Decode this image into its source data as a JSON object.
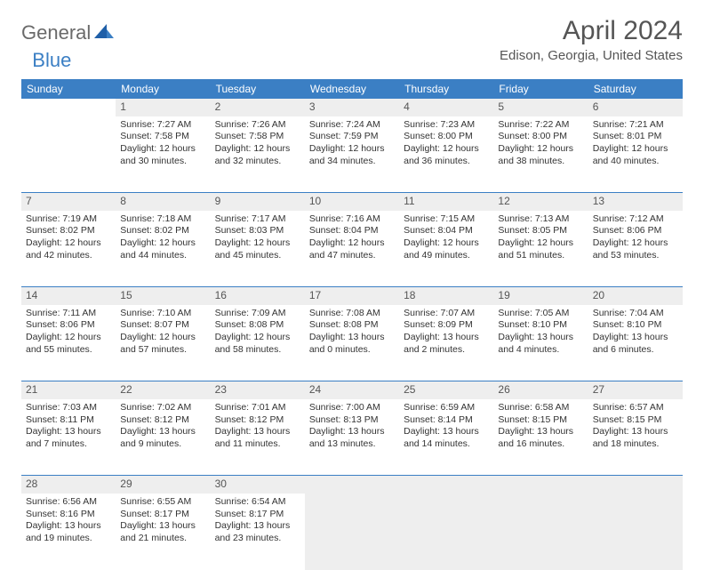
{
  "logo": {
    "general": "General",
    "blue": "Blue",
    "iconColor": "#1f5fa8"
  },
  "title": "April 2024",
  "location": "Edison, Georgia, United States",
  "headerColor": "#3b7fc4",
  "dayHeaderBg": "#eeeeee",
  "weekdays": [
    "Sunday",
    "Monday",
    "Tuesday",
    "Wednesday",
    "Thursday",
    "Friday",
    "Saturday"
  ],
  "weeks": [
    [
      null,
      {
        "n": "1",
        "sr": "7:27 AM",
        "ss": "7:58 PM",
        "dl": "12 hours and 30 minutes."
      },
      {
        "n": "2",
        "sr": "7:26 AM",
        "ss": "7:58 PM",
        "dl": "12 hours and 32 minutes."
      },
      {
        "n": "3",
        "sr": "7:24 AM",
        "ss": "7:59 PM",
        "dl": "12 hours and 34 minutes."
      },
      {
        "n": "4",
        "sr": "7:23 AM",
        "ss": "8:00 PM",
        "dl": "12 hours and 36 minutes."
      },
      {
        "n": "5",
        "sr": "7:22 AM",
        "ss": "8:00 PM",
        "dl": "12 hours and 38 minutes."
      },
      {
        "n": "6",
        "sr": "7:21 AM",
        "ss": "8:01 PM",
        "dl": "12 hours and 40 minutes."
      }
    ],
    [
      {
        "n": "7",
        "sr": "7:19 AM",
        "ss": "8:02 PM",
        "dl": "12 hours and 42 minutes."
      },
      {
        "n": "8",
        "sr": "7:18 AM",
        "ss": "8:02 PM",
        "dl": "12 hours and 44 minutes."
      },
      {
        "n": "9",
        "sr": "7:17 AM",
        "ss": "8:03 PM",
        "dl": "12 hours and 45 minutes."
      },
      {
        "n": "10",
        "sr": "7:16 AM",
        "ss": "8:04 PM",
        "dl": "12 hours and 47 minutes."
      },
      {
        "n": "11",
        "sr": "7:15 AM",
        "ss": "8:04 PM",
        "dl": "12 hours and 49 minutes."
      },
      {
        "n": "12",
        "sr": "7:13 AM",
        "ss": "8:05 PM",
        "dl": "12 hours and 51 minutes."
      },
      {
        "n": "13",
        "sr": "7:12 AM",
        "ss": "8:06 PM",
        "dl": "12 hours and 53 minutes."
      }
    ],
    [
      {
        "n": "14",
        "sr": "7:11 AM",
        "ss": "8:06 PM",
        "dl": "12 hours and 55 minutes."
      },
      {
        "n": "15",
        "sr": "7:10 AM",
        "ss": "8:07 PM",
        "dl": "12 hours and 57 minutes."
      },
      {
        "n": "16",
        "sr": "7:09 AM",
        "ss": "8:08 PM",
        "dl": "12 hours and 58 minutes."
      },
      {
        "n": "17",
        "sr": "7:08 AM",
        "ss": "8:08 PM",
        "dl": "13 hours and 0 minutes."
      },
      {
        "n": "18",
        "sr": "7:07 AM",
        "ss": "8:09 PM",
        "dl": "13 hours and 2 minutes."
      },
      {
        "n": "19",
        "sr": "7:05 AM",
        "ss": "8:10 PM",
        "dl": "13 hours and 4 minutes."
      },
      {
        "n": "20",
        "sr": "7:04 AM",
        "ss": "8:10 PM",
        "dl": "13 hours and 6 minutes."
      }
    ],
    [
      {
        "n": "21",
        "sr": "7:03 AM",
        "ss": "8:11 PM",
        "dl": "13 hours and 7 minutes."
      },
      {
        "n": "22",
        "sr": "7:02 AM",
        "ss": "8:12 PM",
        "dl": "13 hours and 9 minutes."
      },
      {
        "n": "23",
        "sr": "7:01 AM",
        "ss": "8:12 PM",
        "dl": "13 hours and 11 minutes."
      },
      {
        "n": "24",
        "sr": "7:00 AM",
        "ss": "8:13 PM",
        "dl": "13 hours and 13 minutes."
      },
      {
        "n": "25",
        "sr": "6:59 AM",
        "ss": "8:14 PM",
        "dl": "13 hours and 14 minutes."
      },
      {
        "n": "26",
        "sr": "6:58 AM",
        "ss": "8:15 PM",
        "dl": "13 hours and 16 minutes."
      },
      {
        "n": "27",
        "sr": "6:57 AM",
        "ss": "8:15 PM",
        "dl": "13 hours and 18 minutes."
      }
    ],
    [
      {
        "n": "28",
        "sr": "6:56 AM",
        "ss": "8:16 PM",
        "dl": "13 hours and 19 minutes."
      },
      {
        "n": "29",
        "sr": "6:55 AM",
        "ss": "8:17 PM",
        "dl": "13 hours and 21 minutes."
      },
      {
        "n": "30",
        "sr": "6:54 AM",
        "ss": "8:17 PM",
        "dl": "13 hours and 23 minutes."
      },
      null,
      null,
      null,
      null
    ]
  ],
  "labels": {
    "sunrise": "Sunrise:",
    "sunset": "Sunset:",
    "daylight": "Daylight:"
  }
}
